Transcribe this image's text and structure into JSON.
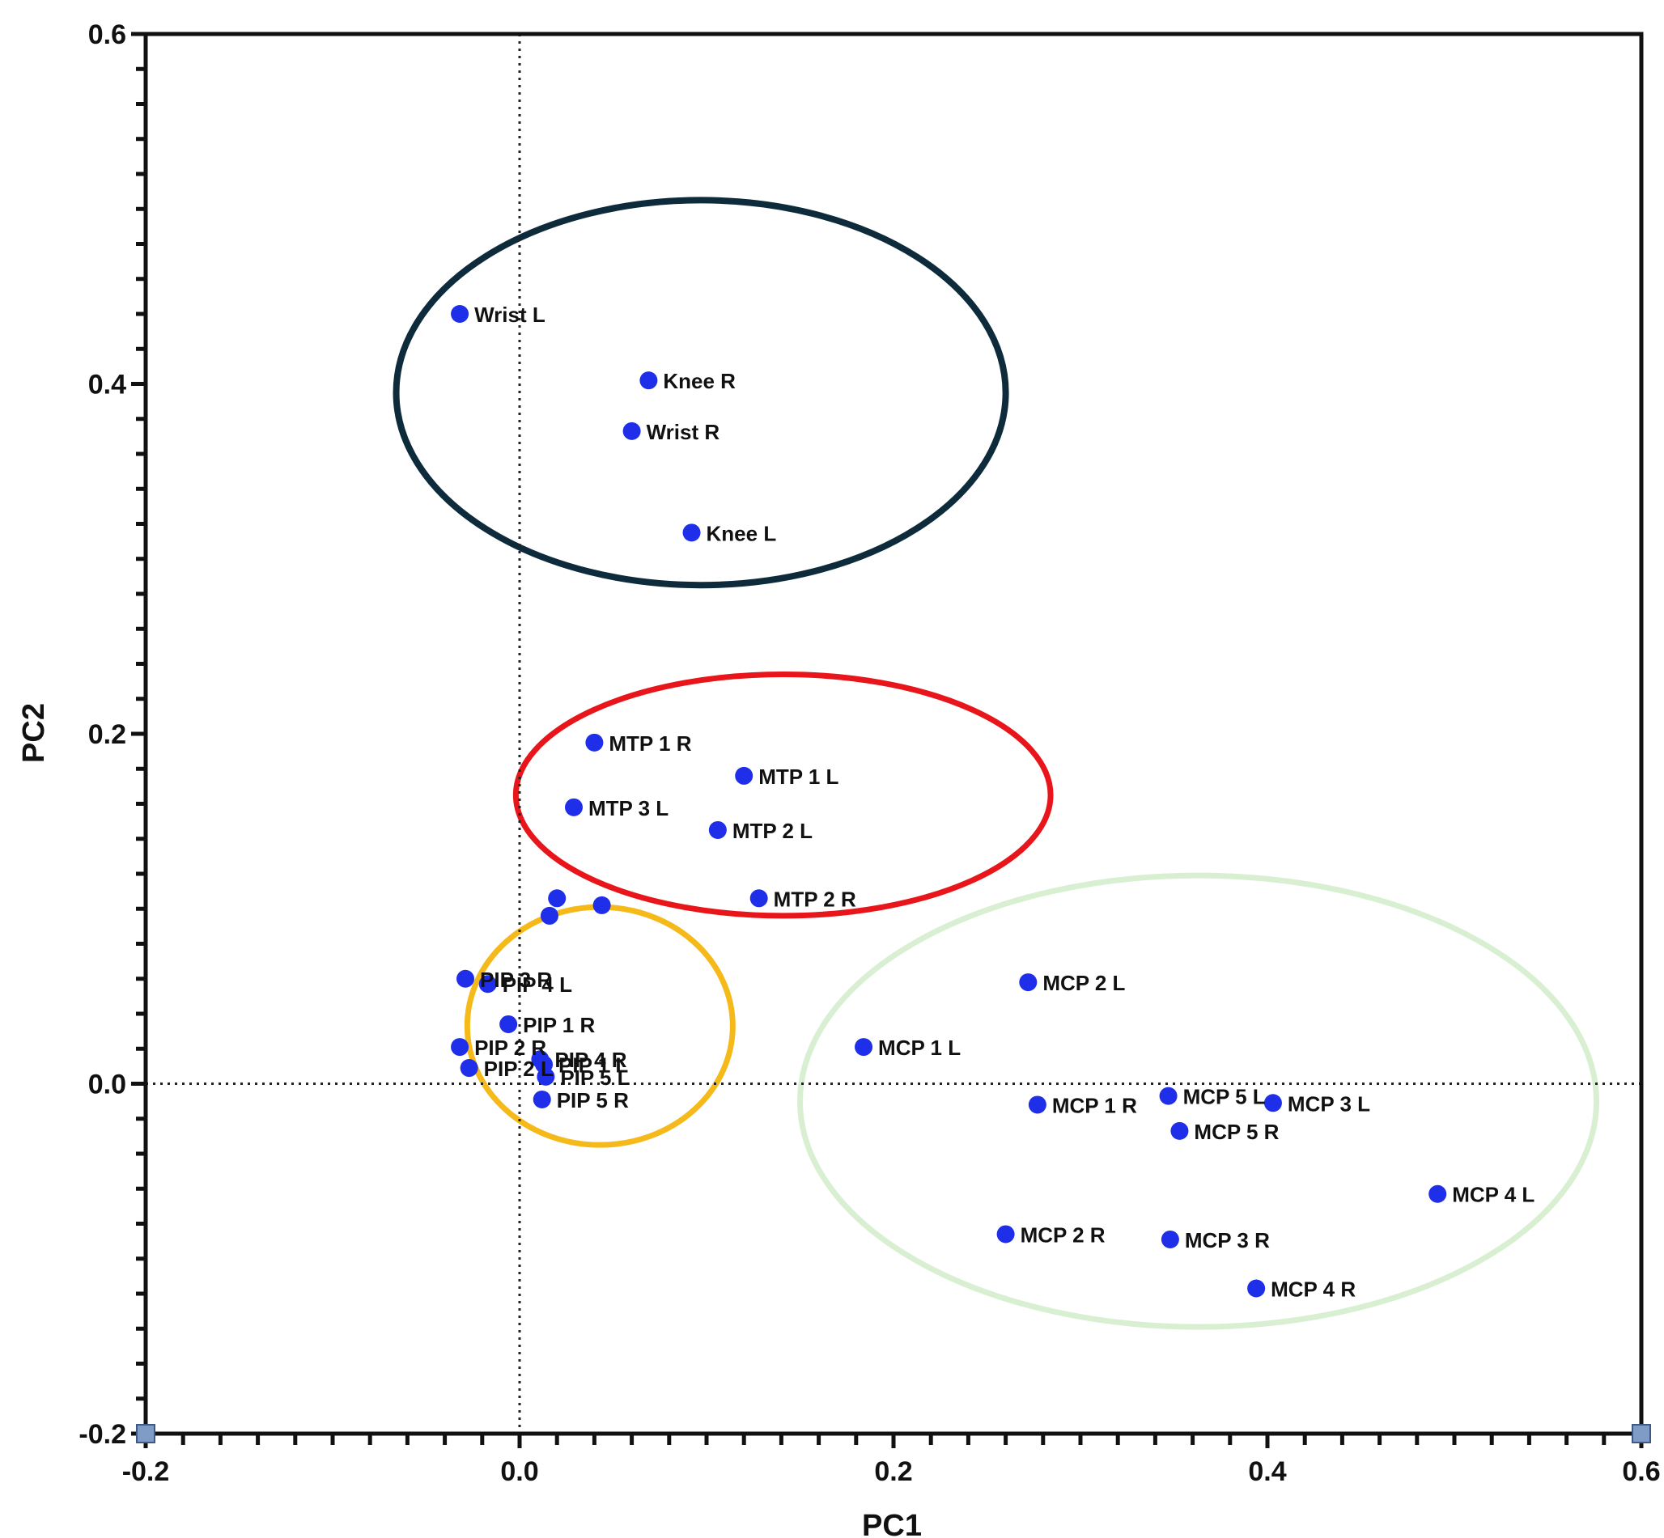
{
  "chart_data": {
    "type": "scatter",
    "xlabel": "PC1",
    "ylabel": "PC2",
    "xlim": [
      -0.2,
      0.6
    ],
    "ylim": [
      -0.2,
      0.6
    ],
    "x_ticks": [
      "-0.2",
      "0.0",
      "0.2",
      "0.4",
      "0.6"
    ],
    "y_ticks": [
      "-0.2",
      "0.0",
      "0.2",
      "0.4",
      "0.6"
    ],
    "grid": false,
    "reference_lines": {
      "x": 0,
      "y": 0
    },
    "point_color": "#1f2ee8",
    "points": [
      {
        "label": "Wrist L",
        "x": -0.032,
        "y": 0.44
      },
      {
        "label": "Knee R",
        "x": 0.069,
        "y": 0.402
      },
      {
        "label": "Wrist R",
        "x": 0.06,
        "y": 0.373
      },
      {
        "label": "Knee L",
        "x": 0.092,
        "y": 0.315
      },
      {
        "label": "MTP 1 R",
        "x": 0.04,
        "y": 0.195
      },
      {
        "label": "MTP 1 L",
        "x": 0.12,
        "y": 0.176
      },
      {
        "label": "MTP 3 L",
        "x": 0.029,
        "y": 0.158
      },
      {
        "label": "MTP 2 L",
        "x": 0.106,
        "y": 0.145
      },
      {
        "label": "MTP 2 R",
        "x": 0.128,
        "y": 0.106
      },
      {
        "label": "",
        "x": 0.02,
        "y": 0.106
      },
      {
        "label": "",
        "x": 0.044,
        "y": 0.102
      },
      {
        "label": "",
        "x": 0.016,
        "y": 0.096
      },
      {
        "label": "PIP 3 R",
        "x": -0.029,
        "y": 0.06
      },
      {
        "label": "PIP 4 L",
        "x": -0.017,
        "y": 0.057
      },
      {
        "label": "PIP 1 R",
        "x": -0.006,
        "y": 0.034
      },
      {
        "label": "PIP 2 R",
        "x": -0.032,
        "y": 0.021
      },
      {
        "label": "PIP 2 L",
        "x": -0.027,
        "y": 0.009
      },
      {
        "label": "PIP 4 R",
        "x": 0.011,
        "y": 0.014
      },
      {
        "label": "PIP 1 L",
        "x": 0.013,
        "y": 0.011
      },
      {
        "label": "PIP 5 L",
        "x": 0.014,
        "y": 0.004
      },
      {
        "label": "PIP 5 R",
        "x": 0.012,
        "y": -0.009
      },
      {
        "label": "MCP 2 L",
        "x": 0.272,
        "y": 0.058
      },
      {
        "label": "MCP 1 L",
        "x": 0.184,
        "y": 0.021
      },
      {
        "label": "MCP 1 R",
        "x": 0.277,
        "y": -0.012
      },
      {
        "label": "MCP 5 L",
        "x": 0.347,
        "y": -0.007
      },
      {
        "label": "MCP 3 L",
        "x": 0.403,
        "y": -0.011
      },
      {
        "label": "MCP 5 R",
        "x": 0.353,
        "y": -0.027
      },
      {
        "label": "MCP 4 L",
        "x": 0.491,
        "y": -0.063
      },
      {
        "label": "MCP 2 R",
        "x": 0.26,
        "y": -0.086
      },
      {
        "label": "MCP 3 R",
        "x": 0.348,
        "y": -0.089
      },
      {
        "label": "MCP 4 R",
        "x": 0.394,
        "y": -0.117
      }
    ],
    "annotations": [
      {
        "shape": "ellipse",
        "color": "#0e2b3c",
        "cx": 0.097,
        "cy": 0.395,
        "rx": 0.163,
        "ry": 0.11
      },
      {
        "shape": "ellipse",
        "color": "#e8151b",
        "cx": 0.141,
        "cy": 0.165,
        "rx": 0.143,
        "ry": 0.069
      },
      {
        "shape": "ellipse",
        "color": "#f5b91a",
        "cx": 0.043,
        "cy": 0.033,
        "rx": 0.071,
        "ry": 0.068
      },
      {
        "shape": "ellipse",
        "color": "#d8efd2",
        "cx": 0.363,
        "cy": -0.01,
        "rx": 0.213,
        "ry": 0.129
      }
    ]
  }
}
